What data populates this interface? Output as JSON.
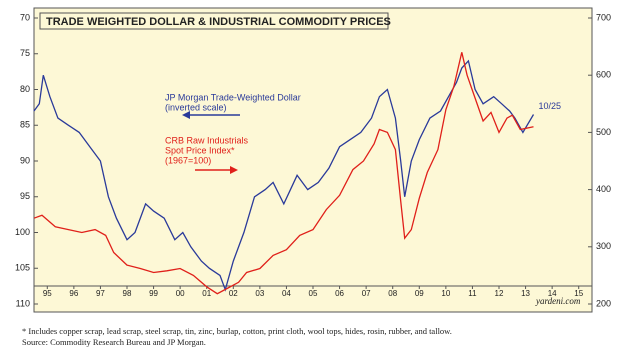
{
  "chart_data": {
    "type": "line",
    "title": "TRADE WEIGHTED DOLLAR & INDUSTRIAL COMMODITY PRICES",
    "xlim": [
      1995,
      2016
    ],
    "xticks": [
      {
        "value": 1995.5,
        "label": "95"
      },
      {
        "value": 1996.5,
        "label": "96"
      },
      {
        "value": 1997.5,
        "label": "97"
      },
      {
        "value": 1998.5,
        "label": "98"
      },
      {
        "value": 1999.5,
        "label": "99"
      },
      {
        "value": 2000.5,
        "label": "00"
      },
      {
        "value": 2001.5,
        "label": "01"
      },
      {
        "value": 2002.5,
        "label": "02"
      },
      {
        "value": 2003.5,
        "label": "03"
      },
      {
        "value": 2004.5,
        "label": "04"
      },
      {
        "value": 2005.5,
        "label": "05"
      },
      {
        "value": 2006.5,
        "label": "06"
      },
      {
        "value": 2007.5,
        "label": "07"
      },
      {
        "value": 2008.5,
        "label": "08"
      },
      {
        "value": 2009.5,
        "label": "09"
      },
      {
        "value": 2010.5,
        "label": "10"
      },
      {
        "value": 2011.5,
        "label": "11"
      },
      {
        "value": 2012.5,
        "label": "12"
      },
      {
        "value": 2013.5,
        "label": "13"
      },
      {
        "value": 2014.5,
        "label": "14"
      },
      {
        "value": 2015.5,
        "label": "15"
      }
    ],
    "ylim": [
      70,
      110
    ],
    "y_inverted": true,
    "yticks": [
      70,
      75,
      80,
      85,
      90,
      95,
      100,
      105,
      110
    ],
    "y2lim": [
      200,
      700
    ],
    "y2ticks": [
      200,
      300,
      400,
      500,
      600,
      700
    ],
    "series": [
      {
        "name": "JP Morgan Trade-Weighted Dollar",
        "color": "#2a3a9a",
        "axis": "y",
        "x": [
          1995.0,
          1995.2,
          1995.35,
          1995.6,
          1995.9,
          1996.3,
          1996.7,
          1997.1,
          1997.5,
          1997.8,
          1998.1,
          1998.5,
          1998.8,
          1999.2,
          1999.5,
          1999.9,
          2000.3,
          2000.6,
          2000.9,
          2001.3,
          2001.6,
          2002.0,
          2002.2,
          2002.5,
          2002.9,
          2003.3,
          2003.7,
          2004.0,
          2004.4,
          2004.9,
          2005.3,
          2005.7,
          2006.1,
          2006.5,
          2006.9,
          2007.3,
          2007.7,
          2008.0,
          2008.3,
          2008.6,
          2008.8,
          2008.95,
          2009.2,
          2009.5,
          2009.9,
          2010.3,
          2010.6,
          2010.9,
          2011.1,
          2011.35,
          2011.6,
          2011.9,
          2012.3,
          2012.6,
          2012.9,
          2013.1,
          2013.4,
          2013.8
        ],
        "values": [
          83,
          82,
          78,
          81,
          84,
          85,
          86,
          88,
          90,
          95,
          98,
          101,
          100,
          96,
          97,
          98,
          101,
          100,
          102,
          104,
          105,
          106,
          108,
          104,
          100,
          95,
          94,
          93,
          96,
          92,
          94,
          93,
          91,
          88,
          87,
          86,
          84,
          81,
          80,
          84,
          90,
          95,
          90,
          87,
          84,
          83,
          81,
          79,
          77,
          76,
          80,
          82,
          81,
          82,
          83,
          84,
          86,
          83.5
        ]
      },
      {
        "name": "CRB Raw Industrials",
        "color": "#e0201a",
        "axis": "y2",
        "x": [
          1995.0,
          1995.3,
          1995.8,
          1996.3,
          1996.8,
          1997.3,
          1997.7,
          1998.0,
          1998.5,
          1999.0,
          1999.5,
          2000.0,
          2000.5,
          2001.0,
          2001.5,
          2001.9,
          2002.3,
          2002.7,
          2003.0,
          2003.5,
          2004.0,
          2004.5,
          2005.0,
          2005.5,
          2006.0,
          2006.5,
          2007.0,
          2007.4,
          2007.8,
          2008.0,
          2008.3,
          2008.6,
          2008.8,
          2008.95,
          2009.2,
          2009.5,
          2009.8,
          2010.2,
          2010.5,
          2010.8,
          2011.1,
          2011.3,
          2011.6,
          2011.9,
          2012.2,
          2012.5,
          2012.8,
          2013.0,
          2013.3,
          2013.8
        ],
        "values": [
          350,
          355,
          335,
          330,
          325,
          330,
          320,
          290,
          268,
          262,
          255,
          258,
          262,
          250,
          230,
          218,
          228,
          238,
          255,
          262,
          285,
          295,
          320,
          330,
          365,
          390,
          435,
          450,
          480,
          505,
          500,
          470,
          380,
          315,
          330,
          385,
          430,
          470,
          540,
          580,
          640,
          600,
          560,
          520,
          535,
          500,
          525,
          530,
          505,
          510
        ]
      }
    ],
    "series_notes": [
      [
        "(inverted scale)"
      ],
      [
        "Spot Price Index*",
        "(1967=100)"
      ]
    ],
    "end_label": "10/25",
    "source_credit": "yardeni.com",
    "footnote": "*  Includes copper scrap, lead scrap, steel scrap, tin, zinc, burlap, cotton, print cloth, wool tops, hides, rosin, rubber, and tallow.",
    "source": "Source: Commodity Research Bureau and JP Morgan."
  }
}
